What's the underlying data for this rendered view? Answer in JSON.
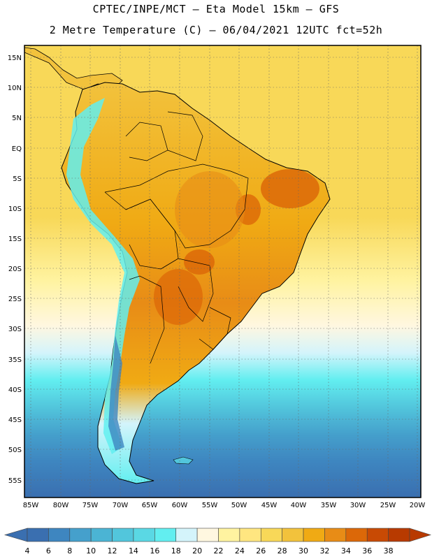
{
  "header": {
    "line1": "CPTEC/INPE/MCT –  Eta Model 15km – GFS",
    "line2": "2 Metre Temperature (C) – 06/04/2021 12UTC fct=52h"
  },
  "map": {
    "lat_labels": [
      "15N",
      "10N",
      "5N",
      "EQ",
      "5S",
      "10S",
      "15S",
      "20S",
      "25S",
      "30S",
      "35S",
      "40S",
      "45S",
      "50S",
      "55S"
    ],
    "lon_labels": [
      "85W",
      "80W",
      "75W",
      "70W",
      "65W",
      "60W",
      "55W",
      "50W",
      "45W",
      "40W",
      "35W",
      "30W",
      "25W",
      "20W"
    ]
  },
  "colorbar": {
    "labels": [
      "4",
      "6",
      "8",
      "10",
      "12",
      "14",
      "16",
      "18",
      "20",
      "22",
      "24",
      "26",
      "28",
      "30",
      "32",
      "34",
      "36",
      "38"
    ],
    "colors": [
      "#3a6fb0",
      "#3e86c0",
      "#45a0cc",
      "#4bb4d4",
      "#52c6dc",
      "#5ad8e4",
      "#62eef0",
      "#d4f4fb",
      "#fff7e0",
      "#fff3a0",
      "#ffe680",
      "#f8d858",
      "#f2c23c",
      "#f0aa14",
      "#e88c16",
      "#dc6808",
      "#c84a04",
      "#b83a00"
    ]
  }
}
